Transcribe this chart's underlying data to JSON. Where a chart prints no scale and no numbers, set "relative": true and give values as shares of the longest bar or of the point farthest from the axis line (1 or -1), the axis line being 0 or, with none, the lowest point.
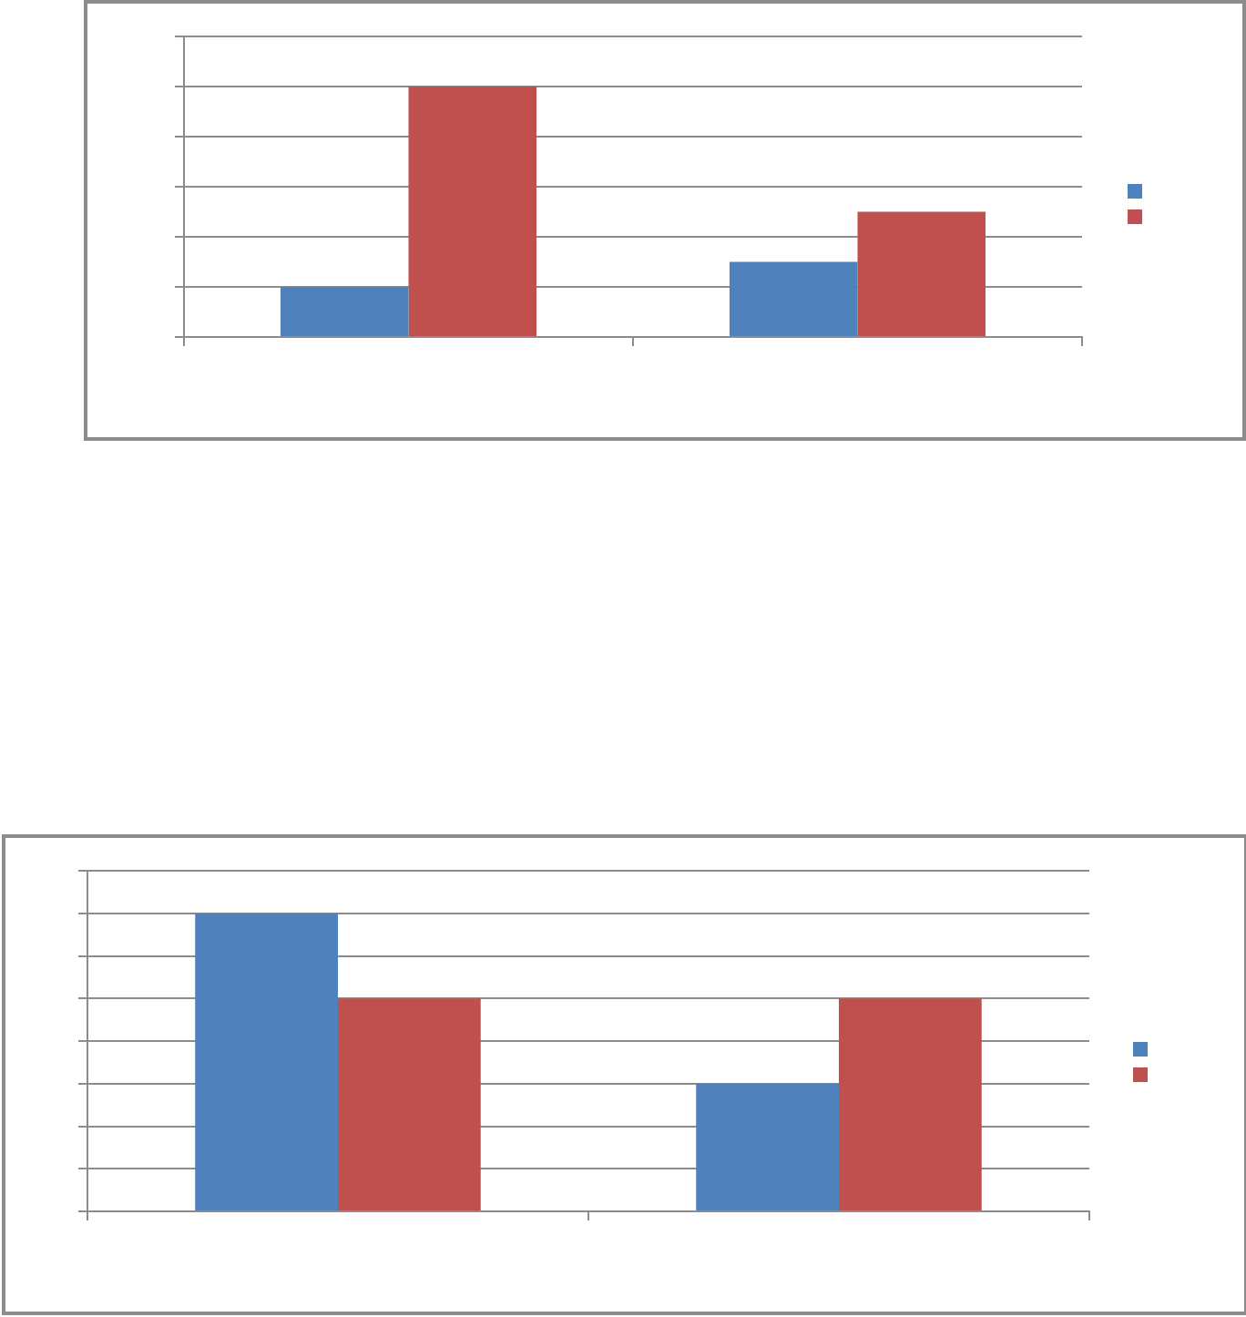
{
  "chart_data": [
    {
      "type": "bar",
      "relative": true,
      "categories": [
        null,
        null
      ],
      "series": [
        {
          "color": "#4f81bd",
          "values": [
            0.2,
            0.3
          ]
        },
        {
          "color": "#c0504d",
          "values": [
            1,
            0.5
          ]
        }
      ],
      "grid": "y",
      "tick_labels": false
    },
    {
      "type": "bar",
      "relative": true,
      "categories": [
        null,
        null
      ],
      "series": [
        {
          "color": "#4f81bd",
          "values": [
            1,
            0.429
          ]
        },
        {
          "color": "#c0504d",
          "values": [
            0.714,
            0.714
          ]
        }
      ],
      "grid": "y",
      "tick_labels": false
    }
  ]
}
